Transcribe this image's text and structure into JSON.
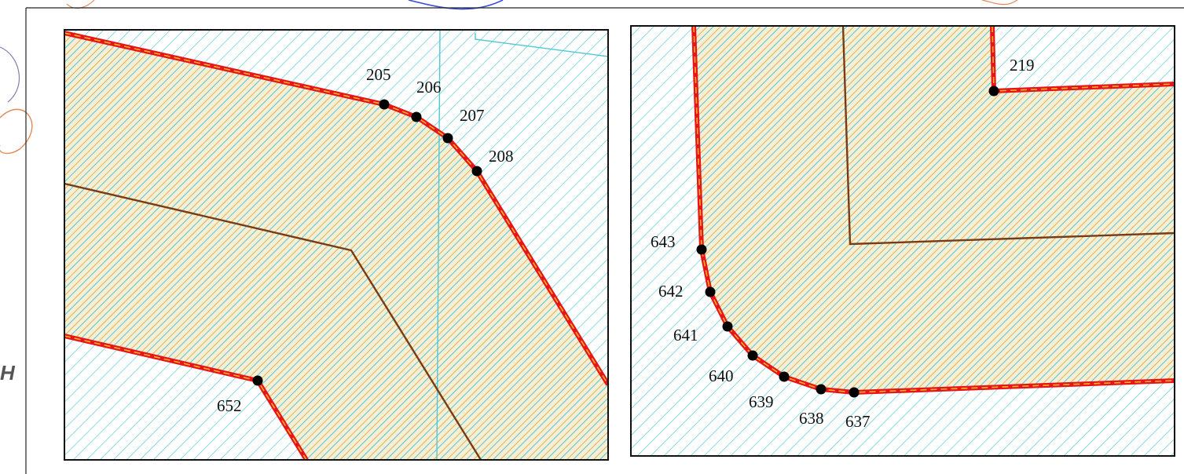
{
  "background_text": "H",
  "colors": {
    "parcel_fill": "#f6efd6",
    "parcel_hatch": "#d49a1a",
    "water_hatch": "#4fc7d4",
    "boundary_red": "#e8141c",
    "boundary_dash": "#f2b21c",
    "inner_line": "#7a3b12",
    "frame": "#111111",
    "contour": "#e08a55",
    "point": "#000000"
  },
  "panels": [
    {
      "name": "left-map-panel",
      "points": [
        {
          "label": "205"
        },
        {
          "label": "206"
        },
        {
          "label": "207"
        },
        {
          "label": "208"
        },
        {
          "label": "652"
        }
      ]
    },
    {
      "name": "right-map-panel",
      "points": [
        {
          "label": "219"
        },
        {
          "label": "643"
        },
        {
          "label": "642"
        },
        {
          "label": "641"
        },
        {
          "label": "640"
        },
        {
          "label": "639"
        },
        {
          "label": "638"
        },
        {
          "label": "637"
        }
      ]
    }
  ]
}
